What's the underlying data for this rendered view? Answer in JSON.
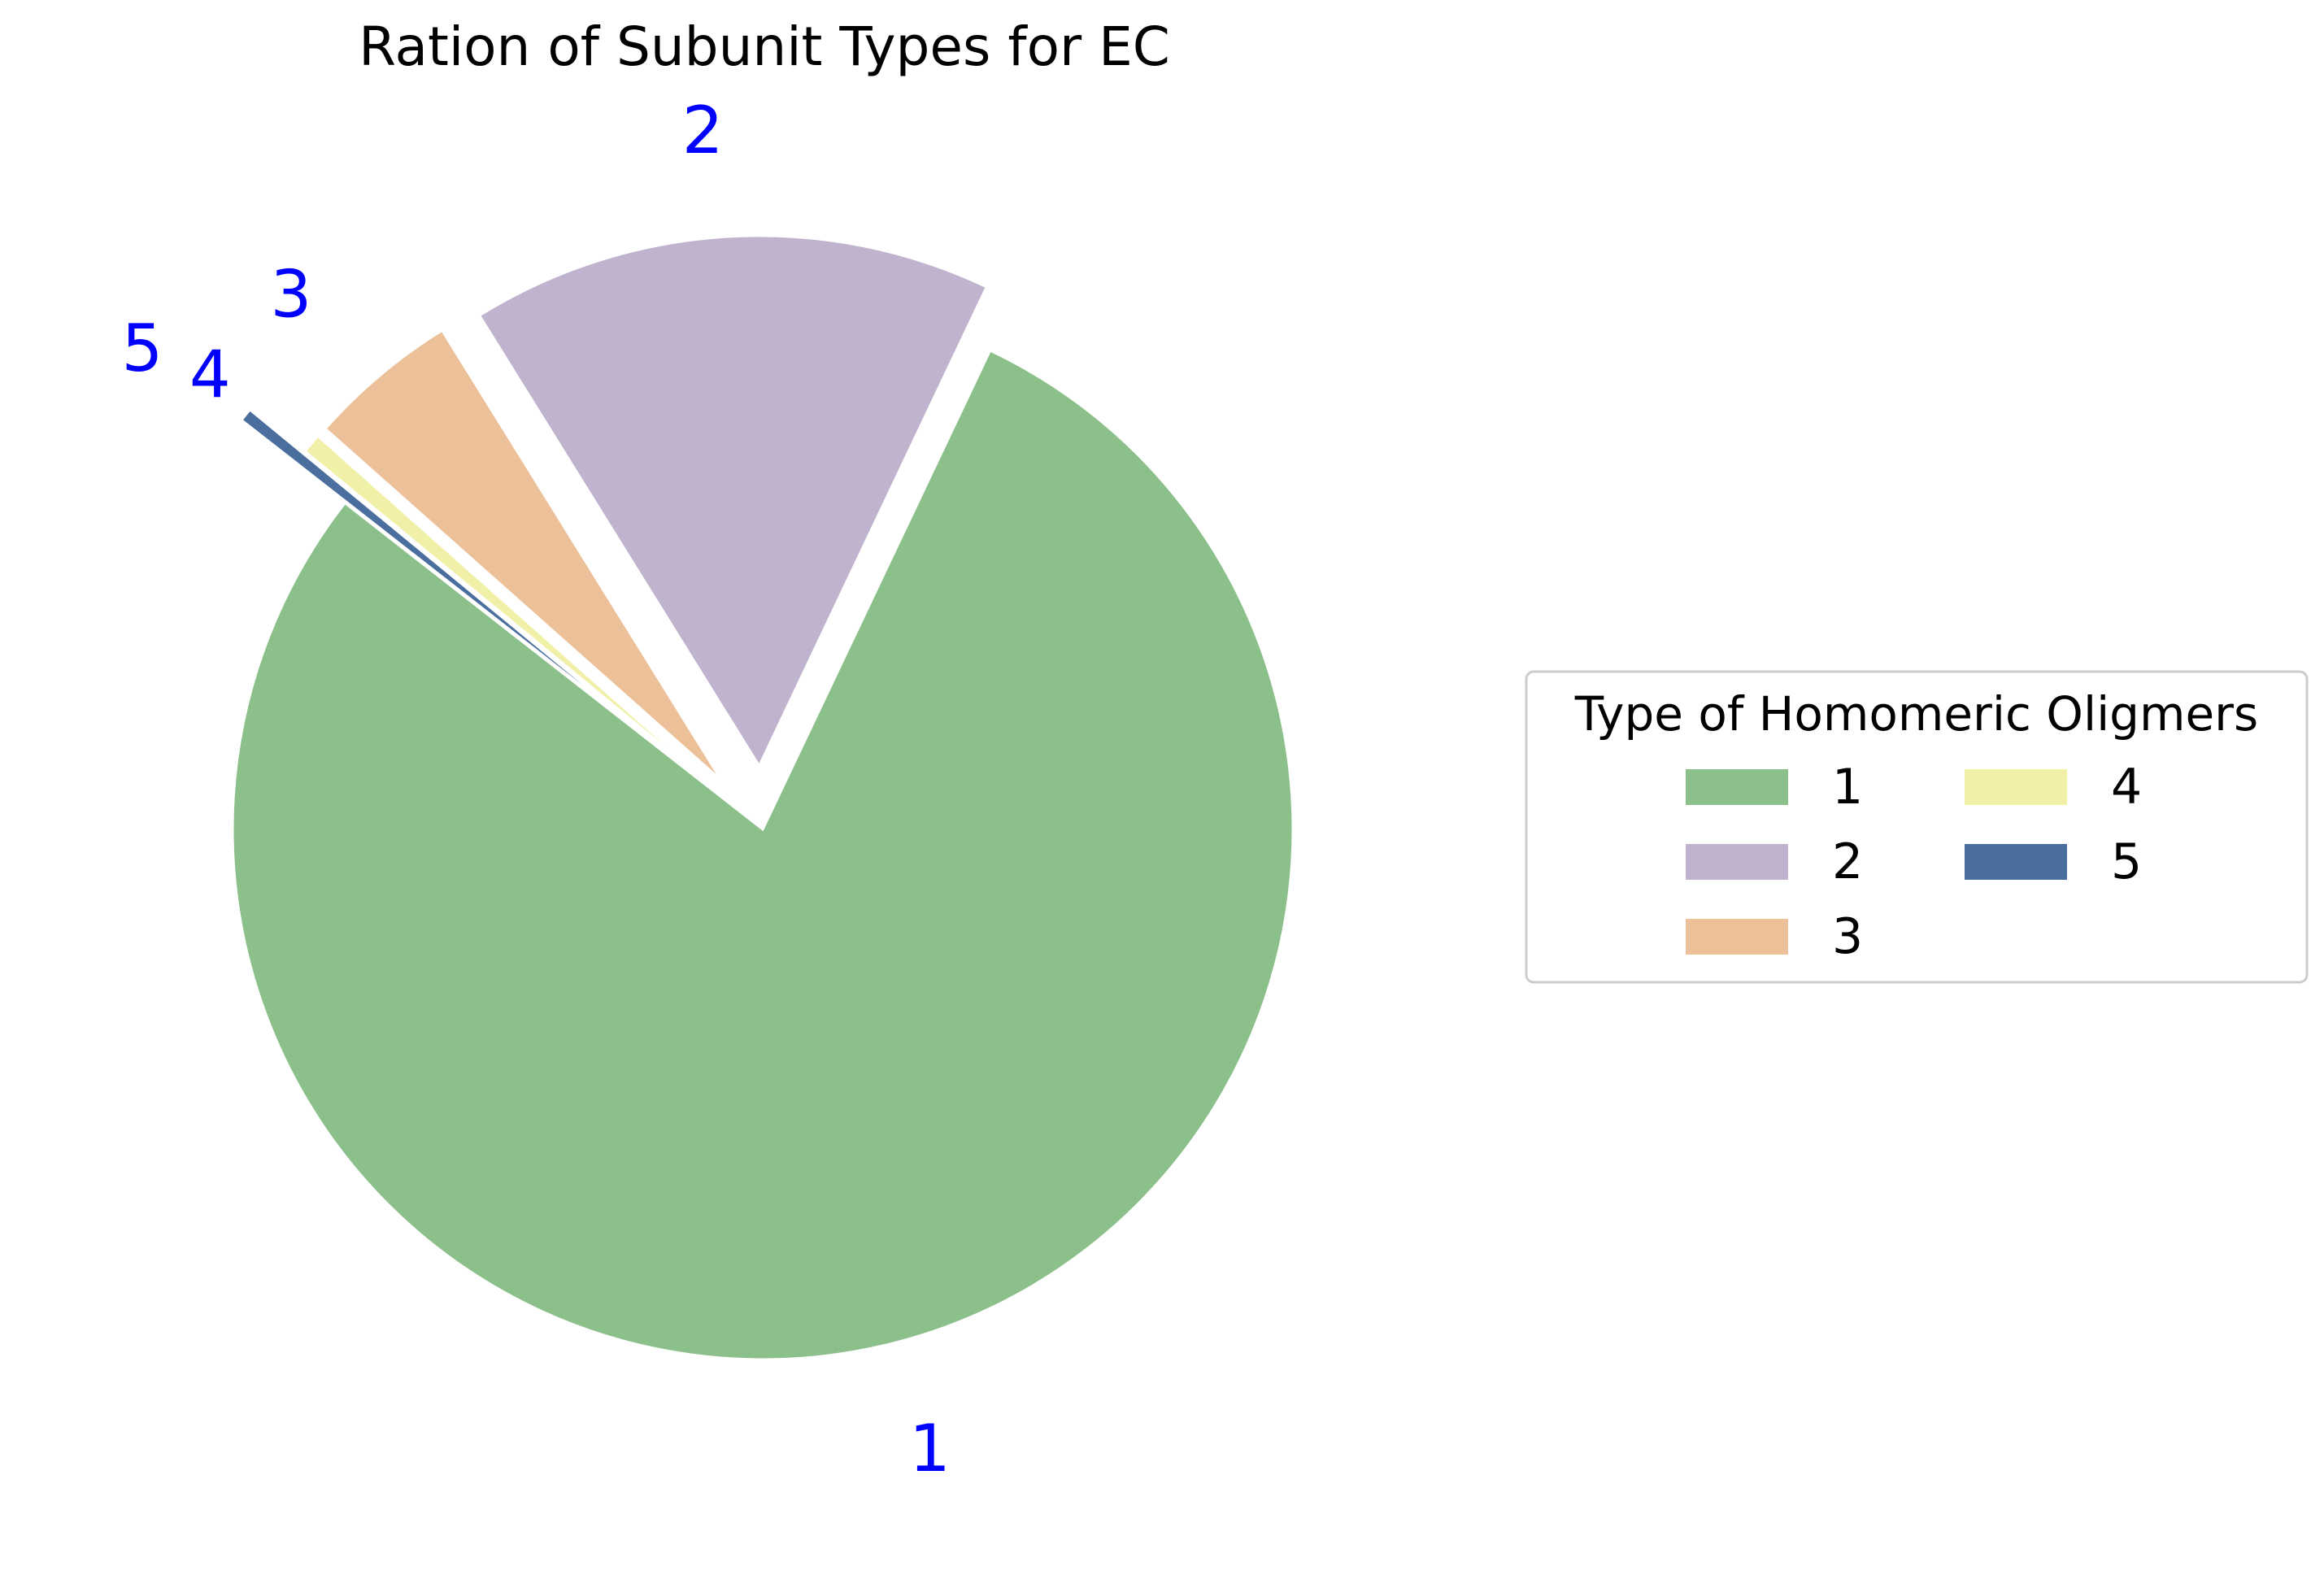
{
  "chart_data": {
    "type": "pie",
    "title": "Ration of Subunit Types for EC",
    "categories": [
      "1",
      "2",
      "3",
      "4",
      "5"
    ],
    "values": [
      78.5,
      15.9,
      4.6,
      0.6,
      0.4
    ],
    "explode": [
      0,
      0.12,
      0.12,
      0.12,
      0.25
    ],
    "startangle_deg": 142,
    "colors": [
      "#8cc08a",
      "#bfb3cd",
      "#ecc098",
      "#f0f0a8",
      "#4a6e9e"
    ],
    "label_color": "#0000ff",
    "legend": {
      "title": "Type of Homomeric Oligmers",
      "placement": "center-right",
      "columns": 2
    }
  }
}
